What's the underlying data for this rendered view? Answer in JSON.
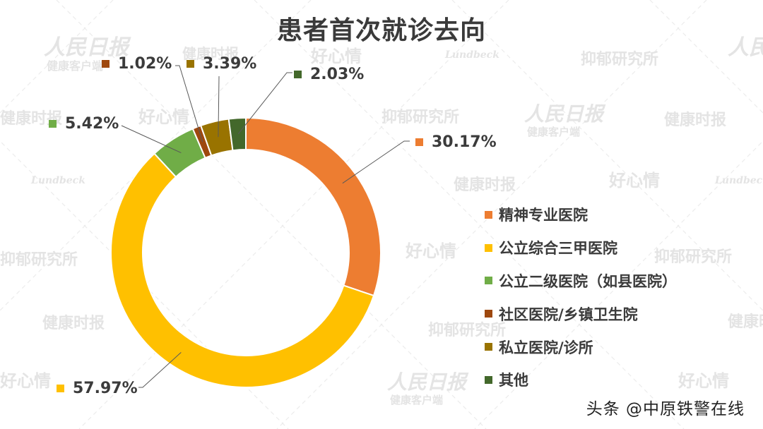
{
  "header": {
    "title": "患者首次就诊去向"
  },
  "footer": {
    "source": "头条 @中原铁警在线"
  },
  "watermarks": [
    "人民日报",
    "健康客户端",
    "健康时报",
    "好心情",
    "抑郁研究所",
    "Lundbeck"
  ],
  "chart_data": {
    "type": "pie",
    "subtype": "donut",
    "title": "患者首次就诊去向",
    "unit": "%",
    "start_angle": "12 o'clock, clockwise",
    "legend_position": "right",
    "categories": [
      "精神专业医院",
      "公立综合三甲医院",
      "公立二级医院（如县医院）",
      "社区医院/乡镇卫生院",
      "私立医院/诊所",
      "其他"
    ],
    "values": [
      30.17,
      57.97,
      5.42,
      1.02,
      3.39,
      2.03
    ],
    "labels": [
      "30.17%",
      "57.97%",
      "5.42%",
      "1.02%",
      "3.39%",
      "2.03%"
    ],
    "colors": [
      "#ED7D31",
      "#FFC000",
      "#70AD47",
      "#9E480E",
      "#997300",
      "#43682B"
    ]
  }
}
